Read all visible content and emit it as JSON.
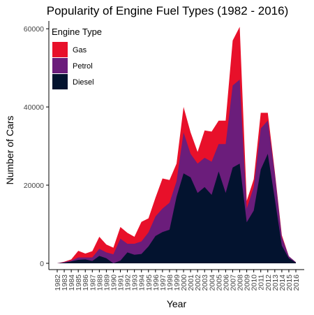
{
  "chart_data": {
    "type": "area",
    "stacked": true,
    "title": "Popularity of Engine Fuel Types (1982 - 2016)",
    "xlabel": "Year",
    "ylabel": "Number of Cars",
    "ylim": [
      0,
      62000
    ],
    "yticks": [
      0,
      20000,
      40000,
      60000
    ],
    "ytick_labels": [
      "0",
      "20000",
      "40000",
      "60000"
    ],
    "categories": [
      "1982",
      "1983",
      "1984",
      "1985",
      "1986",
      "1987",
      "1988",
      "1989",
      "1990",
      "1991",
      "1992",
      "1993",
      "1994",
      "1995",
      "1996",
      "1997",
      "1998",
      "1999",
      "2000",
      "2001",
      "2002",
      "2003",
      "2004",
      "2005",
      "2006",
      "2007",
      "2008",
      "2009",
      "2010",
      "2011",
      "2012",
      "2013",
      "2014",
      "2015",
      "2016"
    ],
    "grid": false,
    "legend": {
      "title": "Engine Type",
      "position": "top-left"
    },
    "series": [
      {
        "name": "Diesel",
        "color": "#03132f",
        "values": [
          0,
          150,
          500,
          900,
          1000,
          600,
          1900,
          1300,
          0,
          700,
          2800,
          2200,
          2400,
          4300,
          7000,
          8000,
          8600,
          17000,
          23000,
          22000,
          18000,
          19500,
          17500,
          23500,
          18000,
          24500,
          25500,
          10500,
          13500,
          24000,
          28000,
          16500,
          4500,
          1300,
          200
        ]
      },
      {
        "name": "Petrol",
        "color": "#6b1d7b",
        "values": [
          0,
          150,
          200,
          600,
          500,
          900,
          1800,
          1500,
          2300,
          5600,
          2200,
          2800,
          3200,
          3600,
          5000,
          6000,
          6900,
          4000,
          10500,
          6000,
          7500,
          7500,
          8500,
          7000,
          12500,
          21000,
          21500,
          3500,
          6000,
          10500,
          8500,
          6500,
          2200,
          500,
          100
        ]
      },
      {
        "name": "Gas",
        "color": "#e8102a",
        "values": [
          0,
          100,
          300,
          1700,
          1000,
          1600,
          3100,
          2000,
          1700,
          3000,
          2800,
          1800,
          5000,
          3600,
          4800,
          7700,
          5800,
          4500,
          6500,
          5500,
          3000,
          7000,
          7700,
          6000,
          6000,
          11500,
          13500,
          2000,
          2000,
          4000,
          2000,
          500,
          500,
          0,
          0
        ]
      }
    ]
  }
}
